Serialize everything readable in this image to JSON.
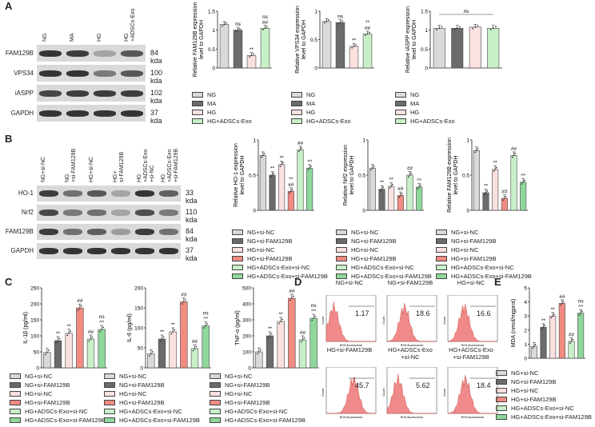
{
  "panels": {
    "A": "A",
    "B": "B",
    "C": "C",
    "D": "D",
    "E": "E"
  },
  "colors": {
    "ng": "#d9d9d9",
    "ma": "#6b6b6b",
    "hg": "#fbe0e0",
    "hg_exo": "#c8f0c8",
    "hg_sifam": "#f28b82",
    "hg_exo_sifam": "#8fd89b"
  },
  "blotA": {
    "lanes": [
      "NG",
      "MA",
      "HG",
      "HG\n+ADSCs-Exo"
    ],
    "rows": [
      {
        "name": "FAM129B",
        "kda": "84 kda"
      },
      {
        "name": "VPS34",
        "kda": "100 kda"
      },
      {
        "name": "iASPP",
        "kda": "102 kda"
      },
      {
        "name": "GAPDH",
        "kda": "37 kda"
      }
    ]
  },
  "blotB": {
    "lanes": [
      "NG+si-NC",
      "NG\n+si-FAM129B",
      "HG+si-NC",
      "HG+\nsi-FAM129B",
      "HG\n+ADSCs-Exo\n+si-NC",
      "HG\n+ADSCs-Exo\n+si-FAM129B"
    ],
    "rows": [
      {
        "name": "HO-1",
        "kda": "33 kda"
      },
      {
        "name": "Nrf2",
        "kda": "110 kda"
      },
      {
        "name": "FAM129B",
        "kda": "84 kda"
      },
      {
        "name": "GAPDH",
        "kda": "37 kda"
      }
    ]
  },
  "legendA": [
    "NG",
    "MA",
    "HG",
    "HG+ADSCs-Exo"
  ],
  "legendB": [
    "NG+si-NC",
    "NG+si-FAM129B",
    "HG+si-NC",
    "HG+si-FAM129B",
    "HG+ADSCs-Exo+si-NC",
    "HG+ADSCs-Exo+si-FAM129B"
  ],
  "facs": {
    "titles": [
      "NG+si-NC",
      "NG+si-FAM129B",
      "HG+si-NC",
      "HG+si-FAM129B",
      "HG+ADSCs-Exo\n+si-NC",
      "HG+ADSCs-Exo\n+si-FAM129B"
    ],
    "values": [
      "1.17",
      "18.6",
      "16.6",
      "45.7",
      "5.62",
      "18.4"
    ],
    "xlabel": "ROS-fluorescence",
    "ylabel": "Count"
  },
  "chart_data": [
    {
      "id": "A1",
      "type": "bar",
      "ylabel": "Relative FAM129B expression\nlevel to GAPDH",
      "ylim": [
        0,
        1.5
      ],
      "ticks": [
        0,
        0.5,
        1,
        1.5
      ],
      "categories": [
        "NG",
        "MA",
        "HG",
        "HG+ADSCs-Exo"
      ],
      "values": [
        1.15,
        1.0,
        0.33,
        1.05
      ],
      "annotations": [
        "",
        "ns",
        "**",
        "ns\n##"
      ]
    },
    {
      "id": "A2",
      "type": "bar",
      "ylabel": "Relative VPS34 expression\nlevel to GAPDH",
      "ylim": [
        0,
        1
      ],
      "ticks": [
        0,
        0.5,
        1
      ],
      "categories": [
        "NG",
        "MA",
        "HG",
        "HG+ADSCs-Exo"
      ],
      "values": [
        0.82,
        0.8,
        0.38,
        0.6
      ],
      "annotations": [
        "",
        "ns",
        "**",
        "**\n##"
      ]
    },
    {
      "id": "A3",
      "type": "bar",
      "ylabel": "Relative iASPP expression\nlevel to GAPDH",
      "ylim": [
        0,
        1.5
      ],
      "ticks": [
        0,
        0.5,
        1,
        1.5
      ],
      "categories": [
        "NG",
        "MA",
        "HG",
        "HG+ADSCs-Exo"
      ],
      "values": [
        1.05,
        1.05,
        1.08,
        1.05
      ],
      "annotations": [
        "",
        "",
        "",
        ""
      ],
      "bracket": "ns"
    },
    {
      "id": "B1",
      "type": "bar",
      "ylabel": "Relative HO-1 expression\nlevel to GAPDH",
      "ylim": [
        0,
        1
      ],
      "ticks": [
        0,
        0.5,
        1
      ],
      "categories": [
        "NG+si-NC",
        "NG+si-FAM129B",
        "HG+si-NC",
        "HG+si-FAM129B",
        "HG+ADSCs-Exo+si-NC",
        "HG+ADSCs-Exo+si-FAM129B"
      ],
      "values": [
        0.78,
        0.5,
        0.65,
        0.27,
        0.86,
        0.6
      ],
      "annotations": [
        "",
        "**",
        "**",
        "**\n##",
        "##",
        "^^"
      ]
    },
    {
      "id": "B2",
      "type": "bar",
      "ylabel": "Relative Nrf2 expression\nlevel to GAPDH",
      "ylim": [
        0,
        1
      ],
      "ticks": [
        0,
        0.5,
        1
      ],
      "categories": [
        "NG+si-NC",
        "NG+si-FAM129B",
        "HG+si-NC",
        "HG+si-FAM129B",
        "HG+ADSCs-Exo+si-NC",
        "HG+ADSCs-Exo+si-FAM129B"
      ],
      "values": [
        0.6,
        0.3,
        0.34,
        0.21,
        0.5,
        0.33
      ],
      "annotations": [
        "",
        "**",
        "**",
        "##",
        "##",
        "^^"
      ]
    },
    {
      "id": "B3",
      "type": "bar",
      "ylabel": "Relative FAM129B expression\nlevel to GAPDH",
      "ylim": [
        0,
        1
      ],
      "ticks": [
        0,
        0.5,
        1
      ],
      "categories": [
        "NG+si-NC",
        "NG+si-FAM129B",
        "HG+si-NC",
        "HG+si-FAM129B",
        "HG+ADSCs-Exo+si-NC",
        "HG+ADSCs-Exo+si-FAM129B"
      ],
      "values": [
        0.85,
        0.25,
        0.58,
        0.17,
        0.78,
        0.4
      ],
      "annotations": [
        "",
        "**",
        "**",
        "##",
        "##",
        "^^"
      ]
    },
    {
      "id": "C1",
      "type": "bar",
      "ylabel": "IL-1β (pg/ml)",
      "ylim": [
        0,
        250
      ],
      "ticks": [
        0,
        50,
        100,
        150,
        200,
        250
      ],
      "categories": [
        "NG+si-NC",
        "NG+si-FAM129B",
        "HG+si-NC",
        "HG+si-FAM129B",
        "HG+ADSCs-Exo+si-NC",
        "HG+ADSCs-Exo+si-FAM129B"
      ],
      "values": [
        48,
        85,
        108,
        187,
        90,
        120
      ],
      "annotations": [
        "",
        "**",
        "**",
        "##",
        "##",
        "ns\n^^"
      ]
    },
    {
      "id": "C2",
      "type": "bar",
      "ylabel": "IL-6 (pg/ml)",
      "ylim": [
        0,
        200
      ],
      "ticks": [
        0,
        50,
        100,
        150,
        200
      ],
      "categories": [
        "NG+si-NC",
        "NG+si-FAM129B",
        "HG+si-NC",
        "HG+si-FAM129B",
        "HG+ADSCs-Exo+si-NC",
        "HG+ADSCs-Exo+si-FAM129B"
      ],
      "values": [
        35,
        72,
        90,
        165,
        48,
        105
      ],
      "annotations": [
        "",
        "**",
        "**",
        "##",
        "##",
        "ns\n^^"
      ]
    },
    {
      "id": "C3",
      "type": "bar",
      "ylabel": "TNF-α (pg/ml)",
      "ylim": [
        0,
        500
      ],
      "ticks": [
        0,
        100,
        200,
        300,
        400,
        500
      ],
      "categories": [
        "NG+si-NC",
        "NG+si-FAM129B",
        "HG+si-NC",
        "HG+si-FAM129B",
        "HG+ADSCs-Exo+si-NC",
        "HG+ADSCs-Exo+si-FAM129B"
      ],
      "values": [
        100,
        200,
        290,
        435,
        175,
        310
      ],
      "annotations": [
        "",
        "**",
        "**",
        "##",
        "##",
        "ns\n^^"
      ]
    },
    {
      "id": "E1",
      "type": "bar",
      "ylabel": "MDA (nmol/mgprot)",
      "ylim": [
        0,
        5
      ],
      "ticks": [
        0,
        1,
        2,
        3,
        4,
        5
      ],
      "categories": [
        "NG+si-NC",
        "NG+si-FAM129B",
        "HG+si-NC",
        "HG+si-FAM129B",
        "HG+ADSCs-Exo+si-NC",
        "HG+ADSCs-Exo+si-FAM129B"
      ],
      "values": [
        0.85,
        2.2,
        3.0,
        3.9,
        1.2,
        3.2
      ],
      "annotations": [
        "",
        "**",
        "**",
        "##",
        "##",
        "ns\n^^"
      ]
    }
  ]
}
